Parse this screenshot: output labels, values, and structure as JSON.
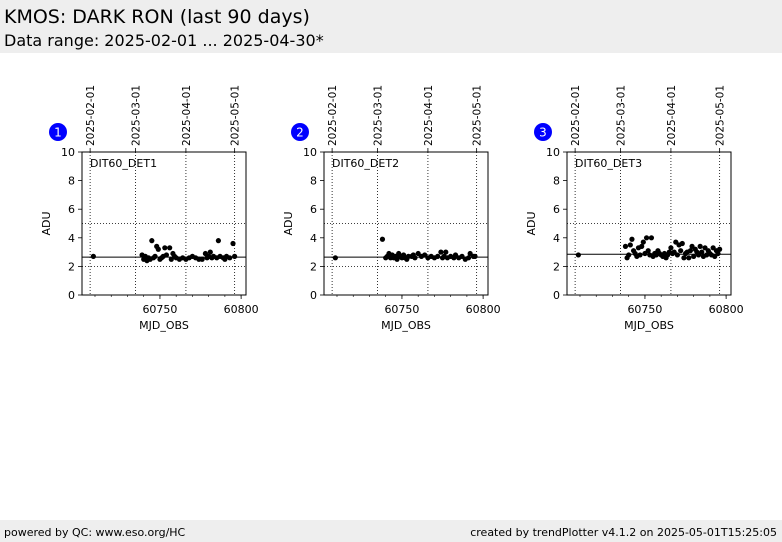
{
  "header": {
    "title": "KMOS: DARK RON (last 90 days)",
    "subtitle": "Data range: 2025-02-01 ... 2025-04-30*"
  },
  "footer": {
    "left": "powered by QC: www.eso.org/HC",
    "right": "created by trendPlotter v4.1.2 on 2025-05-01T15:25:05"
  },
  "colors": {
    "header_bg": "#eeeeee",
    "badge": "#0000ff",
    "badge_text": "#ffffff",
    "points": "#000000"
  },
  "chart_data": [
    {
      "type": "scatter",
      "badge": "1",
      "label": "DIT60_DET1",
      "xlabel": "MJD_OBS",
      "ylabel": "ADU",
      "xlim": [
        60702,
        60803
      ],
      "ylim": [
        0,
        10
      ],
      "xticks": [
        60750,
        60800
      ],
      "yticks": [
        0,
        2,
        4,
        6,
        8,
        10
      ],
      "grid_y": [
        2,
        5
      ],
      "date_ticks": [
        {
          "label": "2025-02-01",
          "mjd": 60707
        },
        {
          "label": "2025-03-01",
          "mjd": 60735
        },
        {
          "label": "2025-04-01",
          "mjd": 60766
        },
        {
          "label": "2025-05-01",
          "mjd": 60796
        }
      ],
      "ref_line": 2.65,
      "points": [
        [
          60709,
          2.7
        ],
        [
          60739,
          2.8
        ],
        [
          60740,
          2.5
        ],
        [
          60741,
          2.7
        ],
        [
          60742,
          2.4
        ],
        [
          60743,
          2.6
        ],
        [
          60744,
          2.5
        ],
        [
          60745,
          3.8
        ],
        [
          60746,
          2.6
        ],
        [
          60747,
          2.7
        ],
        [
          60748,
          3.4
        ],
        [
          60749,
          3.2
        ],
        [
          60750,
          2.5
        ],
        [
          60751,
          2.6
        ],
        [
          60752,
          2.7
        ],
        [
          60753,
          3.3
        ],
        [
          60754,
          2.8
        ],
        [
          60756,
          3.3
        ],
        [
          60757,
          2.5
        ],
        [
          60758,
          2.9
        ],
        [
          60759,
          2.7
        ],
        [
          60760,
          2.6
        ],
        [
          60762,
          2.5
        ],
        [
          60764,
          2.6
        ],
        [
          60766,
          2.5
        ],
        [
          60768,
          2.6
        ],
        [
          60770,
          2.7
        ],
        [
          60772,
          2.6
        ],
        [
          60774,
          2.5
        ],
        [
          60776,
          2.5
        ],
        [
          60778,
          2.9
        ],
        [
          60779,
          2.6
        ],
        [
          60780,
          2.7
        ],
        [
          60781,
          3.0
        ],
        [
          60782,
          2.6
        ],
        [
          60783,
          2.7
        ],
        [
          60785,
          2.6
        ],
        [
          60786,
          3.8
        ],
        [
          60787,
          2.7
        ],
        [
          60789,
          2.6
        ],
        [
          60790,
          2.5
        ],
        [
          60791,
          2.7
        ],
        [
          60793,
          2.6
        ],
        [
          60795,
          3.6
        ],
        [
          60796,
          2.7
        ]
      ]
    },
    {
      "type": "scatter",
      "badge": "2",
      "label": "DIT60_DET2",
      "xlabel": "MJD_OBS",
      "ylabel": "ADU",
      "xlim": [
        60702,
        60803
      ],
      "ylim": [
        0,
        10
      ],
      "xticks": [
        60750,
        60800
      ],
      "yticks": [
        0,
        2,
        4,
        6,
        8,
        10
      ],
      "grid_y": [
        2,
        5
      ],
      "date_ticks": [
        {
          "label": "2025-02-01",
          "mjd": 60707
        },
        {
          "label": "2025-03-01",
          "mjd": 60735
        },
        {
          "label": "2025-04-01",
          "mjd": 60766
        },
        {
          "label": "2025-05-01",
          "mjd": 60796
        }
      ],
      "ref_line": 2.65,
      "points": [
        [
          60709,
          2.6
        ],
        [
          60738,
          3.9
        ],
        [
          60740,
          2.6
        ],
        [
          60741,
          2.7
        ],
        [
          60742,
          2.9
        ],
        [
          60743,
          2.6
        ],
        [
          60744,
          2.8
        ],
        [
          60745,
          2.6
        ],
        [
          60746,
          2.7
        ],
        [
          60747,
          2.5
        ],
        [
          60748,
          2.9
        ],
        [
          60749,
          2.7
        ],
        [
          60750,
          2.6
        ],
        [
          60751,
          2.8
        ],
        [
          60752,
          2.6
        ],
        [
          60753,
          2.5
        ],
        [
          60754,
          2.7
        ],
        [
          60756,
          2.7
        ],
        [
          60757,
          2.8
        ],
        [
          60758,
          2.6
        ],
        [
          60760,
          2.9
        ],
        [
          60762,
          2.7
        ],
        [
          60764,
          2.8
        ],
        [
          60766,
          2.6
        ],
        [
          60768,
          2.7
        ],
        [
          60770,
          2.6
        ],
        [
          60772,
          2.7
        ],
        [
          60774,
          3.0
        ],
        [
          60775,
          2.6
        ],
        [
          60776,
          2.7
        ],
        [
          60777,
          3.0
        ],
        [
          60778,
          2.6
        ],
        [
          60780,
          2.7
        ],
        [
          60782,
          2.6
        ],
        [
          60783,
          2.8
        ],
        [
          60785,
          2.6
        ],
        [
          60787,
          2.7
        ],
        [
          60789,
          2.5
        ],
        [
          60791,
          2.6
        ],
        [
          60792,
          2.9
        ],
        [
          60794,
          2.7
        ],
        [
          60795,
          2.7
        ]
      ]
    },
    {
      "type": "scatter",
      "badge": "3",
      "label": "DIT60_DET3",
      "xlabel": "MJD_OBS",
      "ylabel": "ADU",
      "xlim": [
        60702,
        60803
      ],
      "ylim": [
        0,
        10
      ],
      "xticks": [
        60750,
        60800
      ],
      "yticks": [
        0,
        2,
        4,
        6,
        8,
        10
      ],
      "grid_y": [
        2,
        5
      ],
      "date_ticks": [
        {
          "label": "2025-02-01",
          "mjd": 60707
        },
        {
          "label": "2025-03-01",
          "mjd": 60735
        },
        {
          "label": "2025-04-01",
          "mjd": 60766
        },
        {
          "label": "2025-05-01",
          "mjd": 60796
        }
      ],
      "ref_line": 2.85,
      "points": [
        [
          60709,
          2.8
        ],
        [
          60738,
          3.4
        ],
        [
          60739,
          2.6
        ],
        [
          60740,
          2.8
        ],
        [
          60741,
          3.5
        ],
        [
          60742,
          3.9
        ],
        [
          60743,
          3.1
        ],
        [
          60744,
          2.9
        ],
        [
          60745,
          2.7
        ],
        [
          60746,
          3.3
        ],
        [
          60747,
          2.8
        ],
        [
          60748,
          3.4
        ],
        [
          60749,
          3.7
        ],
        [
          60750,
          2.9
        ],
        [
          60751,
          4.0
        ],
        [
          60752,
          3.1
        ],
        [
          60753,
          2.8
        ],
        [
          60754,
          4.0
        ],
        [
          60755,
          2.7
        ],
        [
          60756,
          2.9
        ],
        [
          60757,
          2.8
        ],
        [
          60758,
          3.1
        ],
        [
          60759,
          2.9
        ],
        [
          60760,
          2.8
        ],
        [
          60761,
          2.7
        ],
        [
          60762,
          2.9
        ],
        [
          60763,
          2.6
        ],
        [
          60764,
          2.8
        ],
        [
          60765,
          3.0
        ],
        [
          60766,
          3.3
        ],
        [
          60767,
          2.9
        ],
        [
          60768,
          3.0
        ],
        [
          60769,
          3.7
        ],
        [
          60770,
          2.8
        ],
        [
          60771,
          3.5
        ],
        [
          60772,
          3.1
        ],
        [
          60773,
          3.6
        ],
        [
          60774,
          2.6
        ],
        [
          60775,
          2.9
        ],
        [
          60776,
          3.0
        ],
        [
          60777,
          2.6
        ],
        [
          60778,
          3.1
        ],
        [
          60779,
          3.4
        ],
        [
          60780,
          2.7
        ],
        [
          60781,
          3.2
        ],
        [
          60782,
          3.0
        ],
        [
          60783,
          2.8
        ],
        [
          60784,
          3.4
        ],
        [
          60785,
          3.0
        ],
        [
          60786,
          2.7
        ],
        [
          60787,
          3.3
        ],
        [
          60788,
          2.8
        ],
        [
          60789,
          3.1
        ],
        [
          60790,
          2.9
        ],
        [
          60791,
          2.8
        ],
        [
          60792,
          3.3
        ],
        [
          60793,
          2.7
        ],
        [
          60794,
          3.1
        ],
        [
          60795,
          2.9
        ],
        [
          60796,
          3.2
        ]
      ]
    }
  ]
}
